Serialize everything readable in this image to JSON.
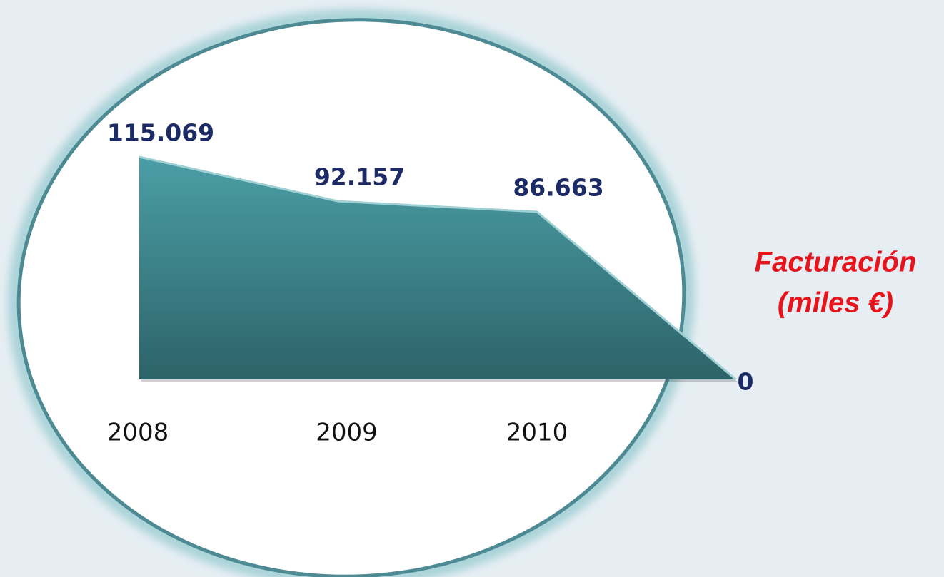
{
  "chart_data": {
    "type": "area",
    "title": "Facturación",
    "subtitle": "(miles €)",
    "categories": [
      "2008",
      "2009",
      "2010",
      null
    ],
    "values": [
      115069,
      92157,
      86663,
      0
    ],
    "value_labels": [
      "115.069",
      "92.157",
      "86.663",
      "0"
    ],
    "color": "#3f8a92"
  }
}
